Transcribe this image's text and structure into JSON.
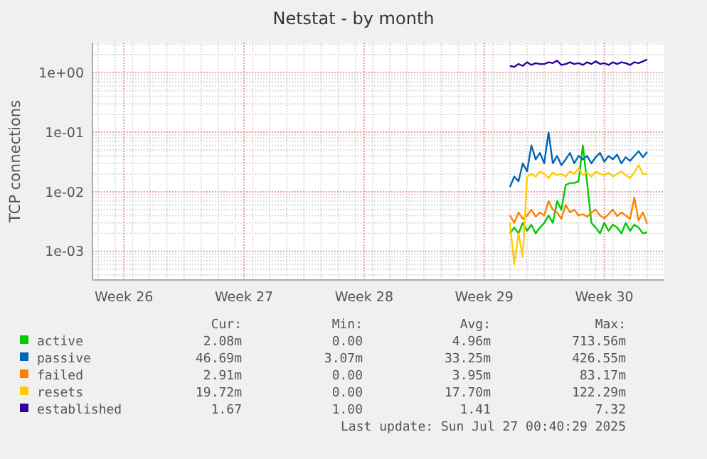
{
  "chart_data": {
    "type": "line",
    "title": "Netstat - by month",
    "ylabel": "TCP connections",
    "log": "y",
    "grid": true,
    "legend": "bottom",
    "x": [
      "2025-07-19T00:00",
      "2025-07-19T06:00",
      "2025-07-19T12:00",
      "2025-07-19T18:00",
      "2025-07-20T00:00",
      "2025-07-20T06:00",
      "2025-07-20T12:00",
      "2025-07-20T18:00",
      "2025-07-21T00:00",
      "2025-07-21T06:00",
      "2025-07-21T12:00",
      "2025-07-21T18:00",
      "2025-07-22T00:00",
      "2025-07-22T06:00",
      "2025-07-22T12:00",
      "2025-07-22T18:00",
      "2025-07-23T00:00",
      "2025-07-23T06:00",
      "2025-07-23T12:00",
      "2025-07-23T18:00",
      "2025-07-24T00:00",
      "2025-07-24T06:00",
      "2025-07-24T12:00",
      "2025-07-24T18:00",
      "2025-07-25T00:00",
      "2025-07-25T06:00",
      "2025-07-25T12:00",
      "2025-07-25T18:00",
      "2025-07-26T00:00",
      "2025-07-26T06:00",
      "2025-07-26T12:00",
      "2025-07-26T18:00",
      "2025-07-27T00:00"
    ],
    "xlim": [
      "2025-06-24T16:00",
      "2025-07-28T00:00"
    ],
    "xticks": [
      {
        "value": "2025-06-26T12:00",
        "label": "Week 26"
      },
      {
        "value": "2025-07-03T12:00",
        "label": "Week 27"
      },
      {
        "value": "2025-07-10T12:00",
        "label": "Week 28"
      },
      {
        "value": "2025-07-17T12:00",
        "label": "Week 29"
      },
      {
        "value": "2025-07-24T12:00",
        "label": "Week 30"
      }
    ],
    "ylim": [
      0.00033,
      3.2
    ],
    "yticks": [
      {
        "value": 0.001,
        "label": "1e-03"
      },
      {
        "value": 0.01,
        "label": "1e-02"
      },
      {
        "value": 0.1,
        "label": "1e-01"
      },
      {
        "value": 1,
        "label": "1e+00"
      }
    ],
    "series": [
      {
        "name": "active",
        "color": "#00cc00",
        "values": [
          0.002,
          0.0025,
          0.002,
          0.003,
          0.0022,
          0.0028,
          0.002,
          0.0025,
          0.003,
          0.004,
          0.003,
          0.007,
          0.005,
          0.013,
          0.014,
          0.014,
          0.015,
          0.06,
          0.014,
          0.003,
          0.0025,
          0.002,
          0.003,
          0.0022,
          0.0028,
          0.0025,
          0.002,
          0.003,
          0.0022,
          0.0028,
          0.0025,
          0.002,
          0.00208
        ]
      },
      {
        "name": "passive",
        "color": "#0066b3",
        "values": [
          0.012,
          0.018,
          0.015,
          0.03,
          0.022,
          0.06,
          0.035,
          0.045,
          0.03,
          0.1,
          0.03,
          0.04,
          0.028,
          0.035,
          0.045,
          0.03,
          0.04,
          0.035,
          0.04,
          0.03,
          0.038,
          0.045,
          0.032,
          0.04,
          0.035,
          0.042,
          0.03,
          0.038,
          0.033,
          0.04,
          0.048,
          0.038,
          0.0467
        ]
      },
      {
        "name": "failed",
        "color": "#ff8000",
        "values": [
          0.004,
          0.003,
          0.0045,
          0.0035,
          0.004,
          0.005,
          0.0038,
          0.0045,
          0.004,
          0.007,
          0.005,
          0.0045,
          0.0035,
          0.006,
          0.0045,
          0.005,
          0.004,
          0.0042,
          0.0038,
          0.0045,
          0.005,
          0.004,
          0.0036,
          0.0042,
          0.005,
          0.0039,
          0.0045,
          0.004,
          0.0035,
          0.008,
          0.0033,
          0.0045,
          0.0029
        ]
      },
      {
        "name": "resets",
        "color": "#ffcc00",
        "values": [
          0.003,
          0.0006,
          0.002,
          0.0008,
          0.018,
          0.02,
          0.018,
          0.022,
          0.02,
          0.017,
          0.021,
          0.019,
          0.02,
          0.018,
          0.022,
          0.02,
          0.025,
          0.019,
          0.021,
          0.018,
          0.022,
          0.02,
          0.019,
          0.021,
          0.018,
          0.02,
          0.022,
          0.019,
          0.017,
          0.021,
          0.028,
          0.02,
          0.0197
        ]
      },
      {
        "name": "established",
        "color": "#330099",
        "values": [
          1.3,
          1.25,
          1.4,
          1.3,
          1.5,
          1.35,
          1.45,
          1.4,
          1.4,
          1.5,
          1.45,
          1.6,
          1.35,
          1.4,
          1.5,
          1.4,
          1.45,
          1.35,
          1.5,
          1.4,
          1.55,
          1.4,
          1.45,
          1.35,
          1.5,
          1.4,
          1.5,
          1.45,
          1.35,
          1.5,
          1.45,
          1.55,
          1.67
        ]
      }
    ],
    "annotations": [
      "Cur:",
      "Min:",
      "Avg:",
      "Max:",
      "2.08m",
      "0.00",
      "4.96m",
      "713.56m",
      "46.69m",
      "3.07m",
      "33.25m",
      "426.55m",
      "2.91m",
      "0.00",
      "3.95m",
      "83.17m",
      "19.72m",
      "0.00",
      "17.70m",
      "122.29m",
      "1.67",
      "1.00",
      "1.41",
      "7.32",
      "Last update: Sun Jul 27 00:40:29 2025"
    ]
  }
}
